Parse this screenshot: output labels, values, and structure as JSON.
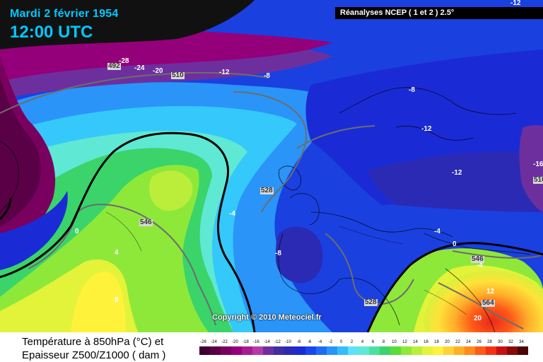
{
  "header": {
    "date": "Mardi 2 février 1954",
    "time": "12:00 UTC",
    "source": "Réanalyses NCEP ( 1 et 2 ) 2.5°"
  },
  "copyright": "Copyright © 2010 Meteociel.fr",
  "footer": {
    "line1": "Température à 850hPa (°C) et",
    "line2": "Epaisseur Z500/Z1000 ( dam )"
  },
  "map_labels": {
    "m28": "-28",
    "m24": "-24",
    "m20": "-20",
    "m12a": "-12",
    "m8a": "-8",
    "m8b": "-8",
    "m12b": "-12",
    "m12c": "-12",
    "m16": "-16",
    "m4a": "-4",
    "m8c": "-8",
    "m4b": "-4",
    "z0a": "0",
    "z0b": "0",
    "p4a": "4",
    "p8": "8",
    "m4c": "-4",
    "p12": "12",
    "p20": "20",
    "m12top": "-12"
  },
  "thickness_labels": {
    "t492": "492",
    "t510a": "510",
    "t528a": "528",
    "t546": "546",
    "t528b": "528",
    "t510b": "510",
    "t546b": "546",
    "t564": "564"
  },
  "legend": {
    "ticks": [
      "-26",
      "-24",
      "-22",
      "-20",
      "-18",
      "-16",
      "-14",
      "-12",
      "-10",
      "-8",
      "-6",
      "-4",
      "-2",
      "0",
      "2",
      "4",
      "6",
      "8",
      "10",
      "12",
      "14",
      "16",
      "18",
      "20",
      "22",
      "24",
      "26",
      "28",
      "30",
      "32",
      "34"
    ],
    "colors": [
      "#3d0030",
      "#5a0047",
      "#7a0060",
      "#94007a",
      "#a81a91",
      "#b43aa6",
      "#6e2f9e",
      "#3f2fa0",
      "#2a2ab5",
      "#1a2bd6",
      "#1a46ee",
      "#1f6cf4",
      "#2a94f8",
      "#35bcfb",
      "#5ce0fb",
      "#5fe8d4",
      "#4be0a0",
      "#3ad46a",
      "#59dc38",
      "#8ee83a",
      "#bbee3a",
      "#e2f33a",
      "#fff23a",
      "#ffd23a",
      "#ffae2a",
      "#ff8a20",
      "#ff5a18",
      "#f53016",
      "#c81010",
      "#8a0a0a",
      "#4a0505"
    ]
  }
}
